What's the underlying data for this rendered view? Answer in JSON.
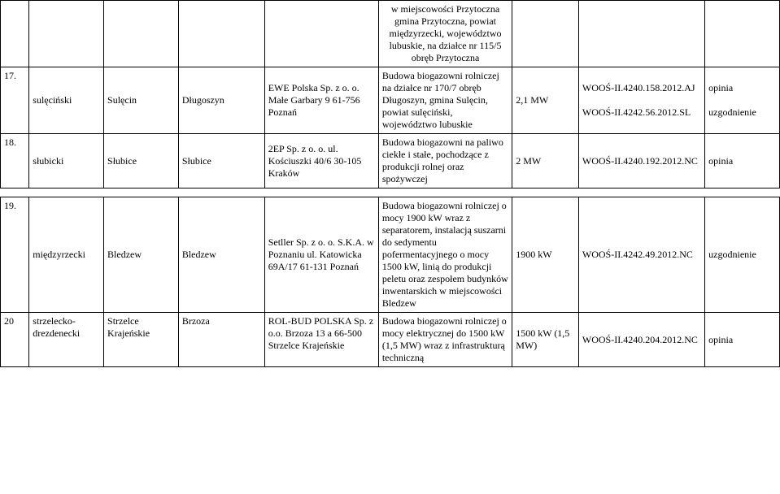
{
  "rows": [
    {
      "num": "",
      "col1": "",
      "col2": "",
      "col3": "",
      "col4": "",
      "col5": "w miejscowości Przytoczna gmina Przytoczna, powiat międzyrzecki, województwo lubuskie, na działce nr 115/5 obręb Przytoczna",
      "col6": "",
      "col7": "",
      "col8": ""
    },
    {
      "num": "17.",
      "col1": "sulęciński",
      "col2": "Sulęcin",
      "col3": "Długoszyn",
      "col4": "EWE Polska Sp. z o. o. Małe Garbary 9 61-756 Poznań",
      "col5": "Budowa biogazowni rolniczej na działce nr 170/7 obręb Długoszyn, gmina Sulęcin, powiat sulęciński, województwo lubuskie",
      "col6": "2,1 MW",
      "col7": "WOOŚ-II.4240.158.2012.AJ\n\nWOOŚ-II.4242.56.2012.SL",
      "col8": "opinia\n\nuzgodnienie"
    },
    {
      "num": "18.",
      "col1": "słubicki",
      "col2": "Słubice",
      "col3": "Słubice",
      "col4": "2EP Sp. z o. o. ul. Kościuszki 40/6 30-105 Kraków",
      "col5": "Budowa biogazowni na paliwo ciekłe i stałe, pochodzące z produkcji rolnej oraz spożywczej",
      "col6": "2 MW",
      "col7": "WOOŚ-II.4240.192.2012.NC",
      "col8": "opinia"
    },
    {
      "num": "19.",
      "col1": "międzyrzecki",
      "col2": "Bledzew",
      "col3": "Bledzew",
      "col4": "Setller Sp. z o. o. S.K.A. w Poznaniu ul. Katowicka 69A/17  61-131 Poznań",
      "col5": "Budowa biogazowni rolniczej o mocy 1900 kW wraz z separatorem, instalacją suszarni do sedymentu pofermentacyjnego o mocy 1500 kW, linią do produkcji peletu oraz zespołem budynków inwentarskich w miejscowości Bledzew",
      "col6": "1900 kW",
      "col7": "WOOŚ-II.4242.49.2012.NC",
      "col8": "uzgodnienie"
    },
    {
      "num": "20",
      "col1": "strzelecko-drezdenecki",
      "col2": "Strzelce Krajeńskie",
      "col3": "Brzoza",
      "col4": "ROL-BUD POLSKA Sp. z o.o. Brzoza 13 a  66-500 Strzelce Krajeńskie",
      "col5": "Budowa biogazowni rolniczej o mocy elektrycznej do 1500 kW (1,5 MW) wraz z infrastrukturą techniczną",
      "col6": "1500 kW (1,5 MW)",
      "col7": "WOOŚ-II.4240.204.2012.NC",
      "col8": "opinia"
    }
  ]
}
